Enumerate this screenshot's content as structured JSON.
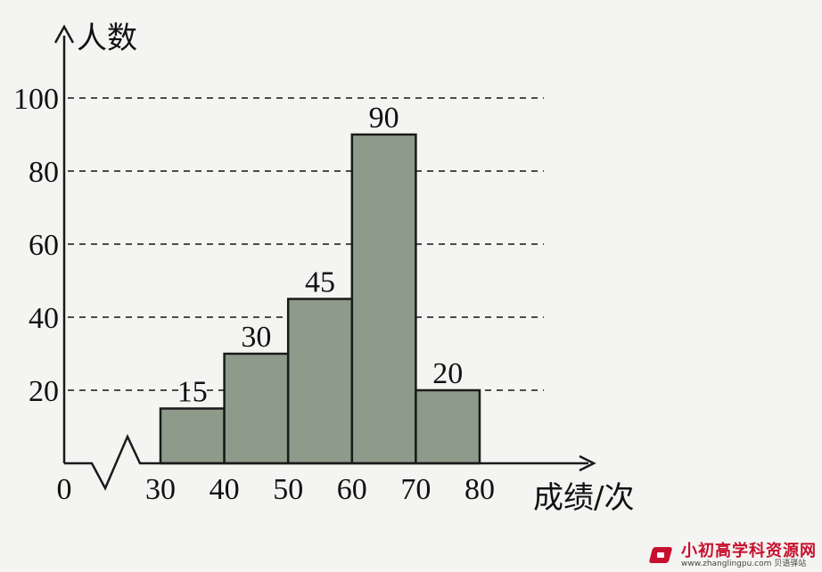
{
  "chart_data": {
    "type": "bar",
    "categories": [
      "30-40",
      "40-50",
      "50-60",
      "60-70",
      "70-80"
    ],
    "values": [
      15,
      30,
      45,
      90,
      20
    ],
    "bin_edges": [
      30,
      40,
      50,
      60,
      70,
      80
    ],
    "data_labels": [
      "15",
      "30",
      "45",
      "90",
      "20"
    ],
    "x_tick_labels": [
      "0",
      "30",
      "40",
      "50",
      "60",
      "70",
      "80"
    ],
    "y_tick_labels": [
      "20",
      "40",
      "60",
      "80",
      "100"
    ],
    "y_ticks": [
      20,
      40,
      60,
      80,
      100
    ],
    "title": "",
    "xlabel": "成绩/次",
    "ylabel": "人数",
    "ylim": [
      0,
      100
    ],
    "xlim": [
      30,
      80
    ],
    "x_axis_break": true,
    "grid": "horizontal-dashed",
    "colors": {
      "bar": "#8e9a8a",
      "bar_border": "#1a1a1a",
      "axis": "#1a1a1a",
      "grid": "#333333"
    }
  },
  "watermark": {
    "title": "小初高学科资源网",
    "subtitle": "www.zhanglingpu.com 贝语驿站"
  }
}
